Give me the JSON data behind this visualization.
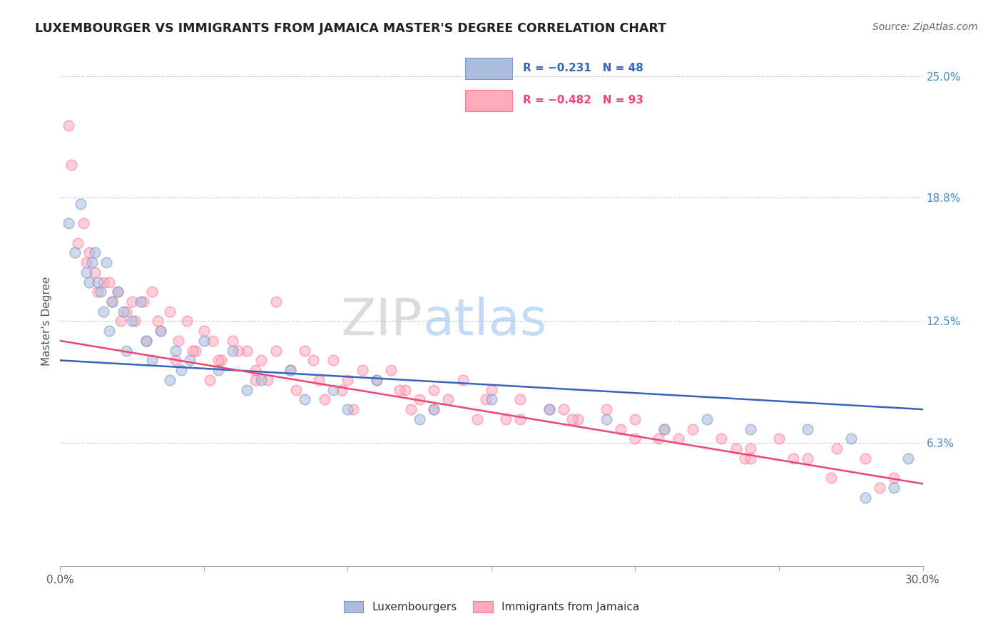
{
  "title": "LUXEMBOURGER VS IMMIGRANTS FROM JAMAICA MASTER'S DEGREE CORRELATION CHART",
  "source": "Source: ZipAtlas.com",
  "ylabel": "Master's Degree",
  "xmin": 0.0,
  "xmax": 30.0,
  "ymin": 0.0,
  "ymax": 25.0,
  "ytick_vals": [
    6.3,
    12.5,
    18.8,
    25.0
  ],
  "ytick_labels": [
    "6.3%",
    "12.5%",
    "18.8%",
    "25.0%"
  ],
  "xtick_vals": [
    0,
    5,
    10,
    15,
    20,
    25,
    30
  ],
  "grid_color": "#cccccc",
  "background_color": "#ffffff",
  "legend_R1": "R = −0.231",
  "legend_N1": "N = 48",
  "legend_R2": "R = −0.482",
  "legend_N2": "N = 93",
  "color_blue": "#aabbdd",
  "color_pink": "#ffaabb",
  "edge_blue": "#7799cc",
  "edge_pink": "#ff7799",
  "line_color_blue": "#3366bb",
  "line_color_pink": "#ee4477",
  "blue_trend_x0": 0.0,
  "blue_trend_x1": 30.0,
  "blue_trend_y0": 10.5,
  "blue_trend_y1": 8.0,
  "pink_trend_x0": 0.0,
  "pink_trend_x1": 30.0,
  "pink_trend_y0": 11.5,
  "pink_trend_y1": 4.2,
  "blue_x": [
    0.3,
    0.5,
    0.7,
    0.9,
    1.0,
    1.2,
    1.4,
    1.6,
    1.8,
    2.0,
    2.2,
    2.5,
    2.8,
    3.0,
    3.5,
    4.0,
    4.5,
    5.0,
    5.5,
    6.0,
    7.0,
    8.0,
    9.5,
    11.0,
    13.0,
    15.0,
    17.0,
    19.0,
    21.0,
    22.5,
    24.0,
    26.0,
    27.5,
    29.5,
    1.1,
    1.3,
    1.5,
    1.7,
    2.3,
    3.2,
    3.8,
    4.2,
    6.5,
    8.5,
    10.0,
    12.5,
    28.0,
    29.0
  ],
  "blue_y": [
    17.5,
    16.0,
    18.5,
    15.0,
    14.5,
    16.0,
    14.0,
    15.5,
    13.5,
    14.0,
    13.0,
    12.5,
    13.5,
    11.5,
    12.0,
    11.0,
    10.5,
    11.5,
    10.0,
    11.0,
    9.5,
    10.0,
    9.0,
    9.5,
    8.0,
    8.5,
    8.0,
    7.5,
    7.0,
    7.5,
    7.0,
    7.0,
    6.5,
    5.5,
    15.5,
    14.5,
    13.0,
    12.0,
    11.0,
    10.5,
    9.5,
    10.0,
    9.0,
    8.5,
    8.0,
    7.5,
    3.5,
    4.0
  ],
  "pink_x": [
    0.4,
    0.8,
    1.0,
    1.2,
    1.5,
    1.8,
    2.0,
    2.3,
    2.6,
    2.9,
    3.2,
    3.5,
    3.8,
    4.1,
    4.4,
    4.7,
    5.0,
    5.3,
    5.6,
    6.0,
    6.5,
    7.0,
    7.5,
    8.0,
    8.5,
    9.0,
    9.5,
    10.0,
    10.5,
    11.0,
    11.5,
    12.0,
    12.5,
    13.0,
    13.5,
    14.0,
    15.0,
    16.0,
    17.0,
    18.0,
    19.0,
    20.0,
    21.0,
    22.0,
    23.0,
    24.0,
    25.0,
    26.0,
    27.0,
    28.0,
    29.0,
    5.5,
    6.8,
    0.6,
    1.3,
    2.1,
    3.0,
    4.0,
    5.2,
    6.2,
    7.2,
    8.2,
    9.2,
    10.2,
    12.2,
    14.5,
    17.5,
    19.5,
    21.5,
    23.5,
    25.5,
    8.8,
    11.8,
    14.8,
    17.8,
    20.8,
    23.8,
    26.8,
    0.9,
    1.7,
    2.5,
    3.4,
    4.6,
    6.8,
    9.8,
    13.0,
    16.0,
    20.0,
    24.0,
    28.5,
    0.3,
    7.5,
    15.5
  ],
  "pink_y": [
    20.5,
    17.5,
    16.0,
    15.0,
    14.5,
    13.5,
    14.0,
    13.0,
    12.5,
    13.5,
    14.0,
    12.0,
    13.0,
    11.5,
    12.5,
    11.0,
    12.0,
    11.5,
    10.5,
    11.5,
    11.0,
    10.5,
    11.0,
    10.0,
    11.0,
    9.5,
    10.5,
    9.5,
    10.0,
    9.5,
    10.0,
    9.0,
    8.5,
    9.0,
    8.5,
    9.5,
    9.0,
    8.5,
    8.0,
    7.5,
    8.0,
    7.5,
    7.0,
    7.0,
    6.5,
    6.0,
    6.5,
    5.5,
    6.0,
    5.5,
    4.5,
    10.5,
    9.5,
    16.5,
    14.0,
    12.5,
    11.5,
    10.5,
    9.5,
    11.0,
    9.5,
    9.0,
    8.5,
    8.0,
    8.0,
    7.5,
    8.0,
    7.0,
    6.5,
    6.0,
    5.5,
    10.5,
    9.0,
    8.5,
    7.5,
    6.5,
    5.5,
    4.5,
    15.5,
    14.5,
    13.5,
    12.5,
    11.0,
    10.0,
    9.0,
    8.0,
    7.5,
    6.5,
    5.5,
    4.0,
    22.5,
    13.5,
    7.5
  ]
}
